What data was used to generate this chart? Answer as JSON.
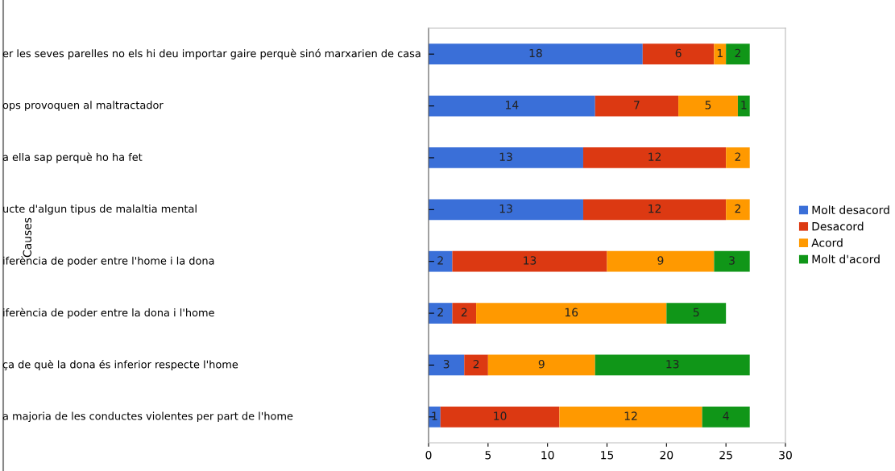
{
  "chart_data": {
    "type": "bar",
    "orientation": "horizontal",
    "stacked": true,
    "ylabel": "Causes",
    "categories": [
      "er les seves parelles no els hi deu importar gaire perquè sinó marxarien de casa",
      "ops provoquen al maltractador",
      "a ella sap perquè ho ha fet",
      "ucte d'algun tipus de malaltia mental",
      "iferència de poder entre l'home i la dona",
      "iferència de poder entre la dona i l'home",
      "ça de què la dona és inferior respecte l'home",
      "a majoria de les conductes violentes per part de l'home"
    ],
    "series": [
      {
        "name": "Molt desacord",
        "color": "#3a6fd8",
        "values": [
          18,
          14,
          13,
          13,
          2,
          2,
          3,
          1
        ]
      },
      {
        "name": "Desacord",
        "color": "#dc3912",
        "values": [
          6,
          7,
          12,
          12,
          13,
          2,
          2,
          10
        ]
      },
      {
        "name": "Acord",
        "color": "#ff9900",
        "values": [
          1,
          5,
          2,
          2,
          9,
          16,
          9,
          12
        ]
      },
      {
        "name": "Molt d'acord",
        "color": "#109618",
        "values": [
          2,
          1,
          null,
          null,
          3,
          5,
          13,
          4
        ]
      }
    ],
    "xlim": [
      0,
      30
    ],
    "xticks": [
      0,
      5,
      10,
      15,
      20,
      25,
      30
    ],
    "data_labels": true,
    "legend": "right",
    "grid": false
  }
}
